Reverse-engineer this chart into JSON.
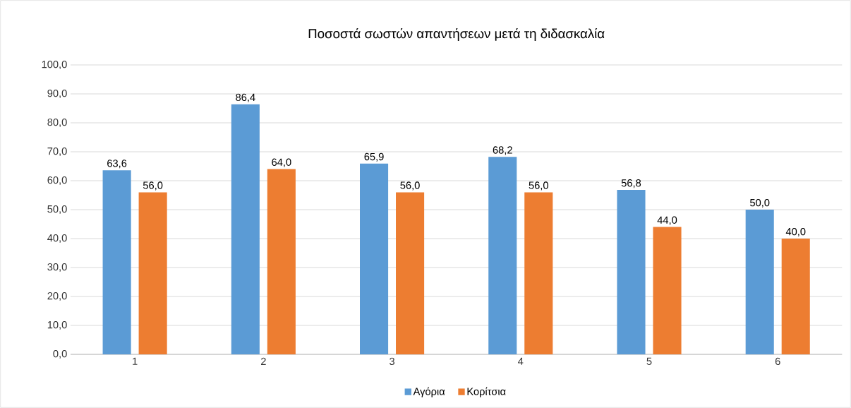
{
  "chart_data": {
    "type": "bar",
    "title": "Ποσοστά σωστών απαντήσεων μετά τη διδασκαλία",
    "categories": [
      "1",
      "2",
      "3",
      "4",
      "5",
      "6"
    ],
    "series": [
      {
        "name": "Αγόρια",
        "color": "#5b9bd5",
        "values": [
          63.6,
          86.4,
          65.9,
          68.2,
          56.8,
          50.0
        ],
        "value_labels": [
          "63,6",
          "86,4",
          "65,9",
          "68,2",
          "56,8",
          "50,0"
        ]
      },
      {
        "name": "Κορίτσια",
        "color": "#ed7d31",
        "values": [
          56.0,
          64.0,
          56.0,
          56.0,
          44.0,
          40.0
        ],
        "value_labels": [
          "56,0",
          "64,0",
          "56,0",
          "56,0",
          "44,0",
          "40,0"
        ]
      }
    ],
    "ylim": [
      0,
      100
    ],
    "yticks": [
      {
        "value": 0,
        "label": "0,0"
      },
      {
        "value": 10,
        "label": "10,0"
      },
      {
        "value": 20,
        "label": "20,0"
      },
      {
        "value": 30,
        "label": "30,0"
      },
      {
        "value": 40,
        "label": "40,0"
      },
      {
        "value": 50,
        "label": "50,0"
      },
      {
        "value": 60,
        "label": "60,0"
      },
      {
        "value": 70,
        "label": "70,0"
      },
      {
        "value": 80,
        "label": "80,0"
      },
      {
        "value": 90,
        "label": "90,0"
      },
      {
        "value": 100,
        "label": "100,0"
      }
    ],
    "grid": "y",
    "legend": "bottom"
  }
}
